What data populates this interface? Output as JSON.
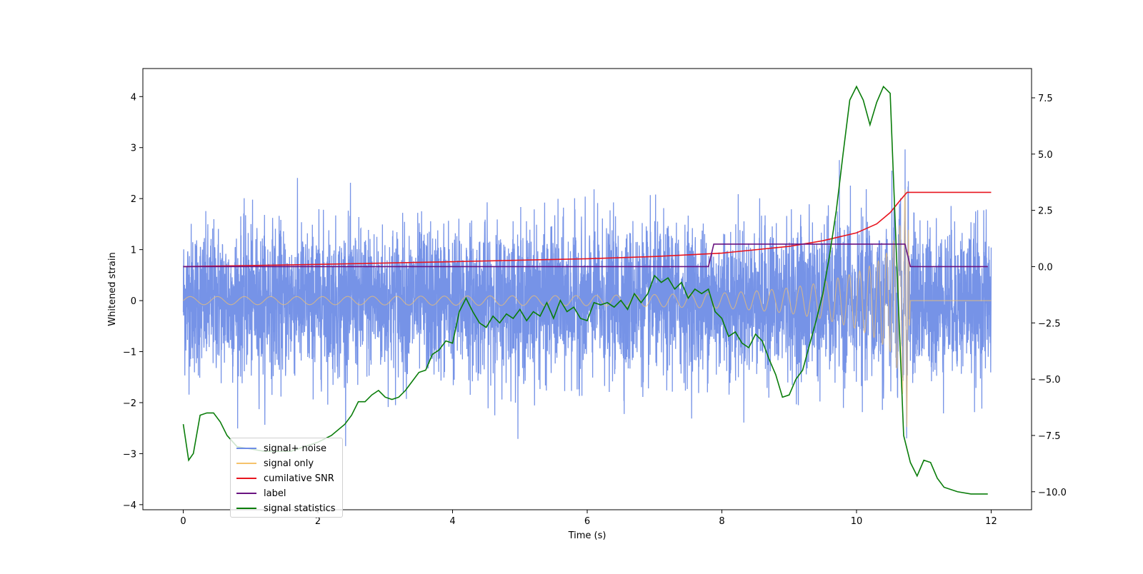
{
  "chart_data": {
    "type": "line",
    "xlabel": "Time (s)",
    "ylabel": "Whitened strain",
    "xlim": [
      -0.6,
      12.6
    ],
    "ylim_left": [
      -4.1,
      4.55
    ],
    "ylim_right": [
      -10.8,
      8.8
    ],
    "x_ticks": [
      0,
      2,
      4,
      6,
      8,
      10,
      12
    ],
    "x_tick_labels": [
      "0",
      "2",
      "4",
      "6",
      "8",
      "10",
      "12"
    ],
    "y_left_ticks": [
      -4,
      -3,
      -2,
      -1,
      0,
      1,
      2,
      3,
      4
    ],
    "y_left_tick_labels": [
      "−4",
      "−3",
      "−2",
      "−1",
      "0",
      "1",
      "2",
      "3",
      "4"
    ],
    "y_right_ticks": [
      -10,
      -7.5,
      -5,
      -2.5,
      0,
      2.5,
      5,
      7.5
    ],
    "y_right_tick_labels": [
      "−10.0",
      "−7.5",
      "−5.0",
      "−2.5",
      "0.0",
      "2.5",
      "5.0",
      "7.5"
    ],
    "legend_position": "lower-left",
    "series": [
      {
        "name": "signal+ noise",
        "color": "#6f8de6",
        "axis": "left",
        "description_values": {
          "x_range": [
            0,
            12
          ],
          "typical_amplitude": 1.6
        }
      },
      {
        "name": "signal only",
        "color": "#f5c26b",
        "axis": "left",
        "envelope": {
          "x": [
            0,
            2,
            4,
            6,
            7,
            8,
            8.5,
            9,
            9.5,
            10,
            10.3,
            10.5,
            10.65,
            10.75,
            10.8,
            12
          ],
          "amp": [
            0.08,
            0.08,
            0.09,
            0.1,
            0.12,
            0.15,
            0.19,
            0.25,
            0.36,
            0.55,
            0.75,
            1.0,
            1.5,
            2.5,
            0.0,
            0.0
          ]
        }
      },
      {
        "name": "cumilative SNR",
        "color": "#e8141e",
        "axis": "right",
        "x": [
          0,
          2,
          4,
          6,
          7,
          8,
          9,
          9.5,
          10,
          10.3,
          10.5,
          10.65,
          10.75,
          12
        ],
        "y": [
          0,
          0.1,
          0.22,
          0.35,
          0.45,
          0.6,
          0.9,
          1.15,
          1.5,
          1.9,
          2.4,
          2.95,
          3.3,
          3.3
        ]
      },
      {
        "name": "label",
        "color": "#6a1380",
        "axis": "right",
        "x": [
          0,
          7.8,
          7.88,
          10.72,
          10.8,
          11.95
        ],
        "y": [
          0,
          0,
          1.0,
          1.0,
          0,
          0
        ]
      },
      {
        "name": "signal statistics",
        "color": "#0a7d0a",
        "axis": "right",
        "x": [
          0,
          0.08,
          0.15,
          0.25,
          0.35,
          0.45,
          0.55,
          0.65,
          0.8,
          1.0,
          1.2,
          1.4,
          1.6,
          1.8,
          2.0,
          2.2,
          2.4,
          2.5,
          2.6,
          2.7,
          2.8,
          2.9,
          3.0,
          3.1,
          3.2,
          3.3,
          3.4,
          3.5,
          3.6,
          3.7,
          3.8,
          3.9,
          4.0,
          4.1,
          4.2,
          4.3,
          4.4,
          4.5,
          4.6,
          4.7,
          4.8,
          4.9,
          5.0,
          5.1,
          5.2,
          5.3,
          5.4,
          5.5,
          5.6,
          5.7,
          5.8,
          5.9,
          6.0,
          6.1,
          6.2,
          6.3,
          6.4,
          6.5,
          6.6,
          6.7,
          6.8,
          6.9,
          7.0,
          7.1,
          7.2,
          7.3,
          7.4,
          7.5,
          7.6,
          7.7,
          7.8,
          7.9,
          8.0,
          8.1,
          8.2,
          8.3,
          8.4,
          8.5,
          8.6,
          8.7,
          8.8,
          8.9,
          9.0,
          9.1,
          9.2,
          9.3,
          9.4,
          9.5,
          9.6,
          9.7,
          9.8,
          9.9,
          10.0,
          10.1,
          10.2,
          10.3,
          10.4,
          10.5,
          10.6,
          10.7,
          10.8,
          10.9,
          11.0,
          11.1,
          11.2,
          11.3,
          11.5,
          11.7,
          11.95
        ],
        "y": [
          -7.0,
          -8.6,
          -8.3,
          -6.6,
          -6.5,
          -6.5,
          -6.9,
          -7.5,
          -8.0,
          -8.1,
          -8.2,
          -8.2,
          -8.2,
          -8.0,
          -7.8,
          -7.5,
          -7.0,
          -6.6,
          -6.0,
          -6.0,
          -5.7,
          -5.5,
          -5.8,
          -5.9,
          -5.8,
          -5.5,
          -5.1,
          -4.7,
          -4.6,
          -3.9,
          -3.7,
          -3.3,
          -3.4,
          -2.0,
          -1.4,
          -2.0,
          -2.5,
          -2.7,
          -2.2,
          -2.5,
          -2.1,
          -2.3,
          -1.9,
          -2.4,
          -2.0,
          -2.2,
          -1.6,
          -2.3,
          -1.5,
          -2.0,
          -1.8,
          -2.3,
          -2.4,
          -1.6,
          -1.7,
          -1.6,
          -1.8,
          -1.5,
          -1.9,
          -1.2,
          -1.6,
          -1.2,
          -0.4,
          -0.7,
          -0.5,
          -1.0,
          -0.7,
          -1.4,
          -1.0,
          -1.2,
          -1.0,
          -2.0,
          -2.3,
          -3.1,
          -2.9,
          -3.4,
          -3.6,
          -3.0,
          -3.3,
          -4.1,
          -4.8,
          -5.8,
          -5.7,
          -5.0,
          -4.6,
          -3.5,
          -2.4,
          -1.2,
          0.5,
          2.5,
          5.0,
          7.4,
          8.0,
          7.4,
          6.3,
          7.3,
          8.0,
          7.7,
          0.0,
          -7.5,
          -8.7,
          -9.3,
          -8.6,
          -8.7,
          -9.4,
          -9.8,
          -10.0,
          -10.1,
          -10.1
        ]
      }
    ]
  }
}
